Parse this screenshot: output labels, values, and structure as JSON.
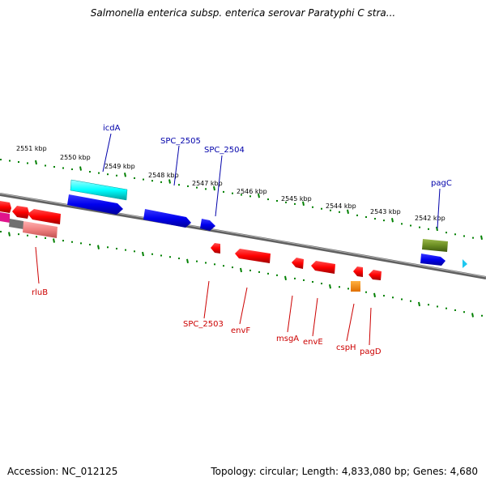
{
  "header": {
    "title": "Salmonella enterica subsp. enterica serovar Paratyphi C stra..."
  },
  "footer": {
    "accession": "Accession: NC_012125",
    "topology": "Topology: circular; Length: 4,833,080 bp; Genes: 4,680"
  },
  "kbp_labels": [
    {
      "text": "2551 kbp"
    },
    {
      "text": "2550 kbp"
    },
    {
      "text": "2549 kbp"
    },
    {
      "text": "2548 kbp"
    },
    {
      "text": "2547 kbp"
    },
    {
      "text": "2546 kbp"
    },
    {
      "text": "2545 kbp"
    },
    {
      "text": "2544 kbp"
    },
    {
      "text": "2543 kbp"
    },
    {
      "text": "2542 kbp"
    }
  ],
  "genes_forward": [
    {
      "name": "icdA",
      "color": "#1e90ff"
    },
    {
      "name": "SPC_2505",
      "color": "#1e90ff"
    },
    {
      "name": "SPC_2504",
      "color": "#1e90ff"
    },
    {
      "name": "pagC",
      "color": "#1e90ff"
    }
  ],
  "genes_reverse": [
    {
      "name": "rluB",
      "color": "#ff0000"
    },
    {
      "name": "SPC_2503",
      "color": "#ff0000"
    },
    {
      "name": "envF",
      "color": "#ff0000"
    },
    {
      "name": "msgA",
      "color": "#ff0000"
    },
    {
      "name": "envE",
      "color": "#ff0000"
    },
    {
      "name": "cspH",
      "color": "#ff0000"
    },
    {
      "name": "pagD",
      "color": "#ff0000"
    }
  ],
  "colors": {
    "forward_cds": "#0000ee",
    "reverse_cds": "#ff0000",
    "rrna": "#00ffff",
    "trna": "#ff8c00",
    "misc": "#6b8e23",
    "backbone": "#808080",
    "ticks": "#008000",
    "forward_label": "#0000aa",
    "reverse_label": "#cc0000"
  }
}
